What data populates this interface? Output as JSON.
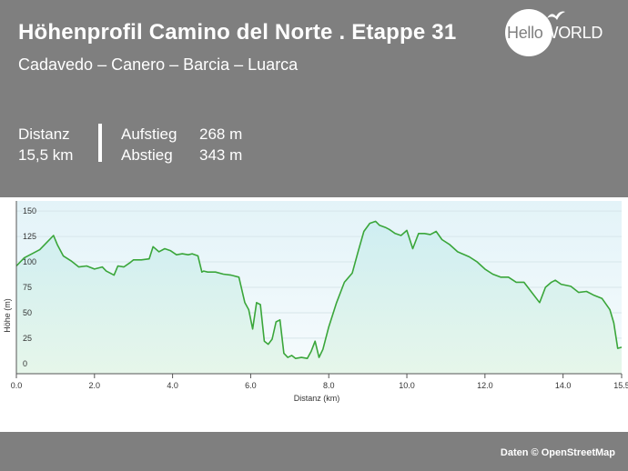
{
  "header": {
    "title": "Höhenprofil Camino del Norte . Etappe 31",
    "subtitle": "Cadavedo – Canero – Barcia – Luarca",
    "logo": {
      "part1": "Hello",
      "part2": "WORLD"
    },
    "stats": {
      "distance_label": "Distanz",
      "distance_value": "15,5 km",
      "ascent_label": "Aufstieg",
      "ascent_value": "268 m",
      "descent_label": "Abstieg",
      "descent_value": "343 m"
    }
  },
  "footer": {
    "credit": "Daten © OpenStreetMap"
  },
  "colors": {
    "header_bg": "#7f7f7f",
    "line": "#3aa63a",
    "fill_top": "#cdeef0",
    "fill_bottom": "#e4f5e8"
  },
  "chart_data": {
    "type": "area",
    "title": "",
    "xlabel": "Distanz  (km)",
    "ylabel": "Höhe (m)",
    "xlim": [
      0,
      15.5
    ],
    "ylim": [
      -10,
      160
    ],
    "x_ticks": [
      "0.0",
      "2.0",
      "4.0",
      "6.0",
      "8.0",
      "10.0",
      "12.0",
      "14.0",
      "15.5"
    ],
    "x_tick_values": [
      0,
      2,
      4,
      6,
      8,
      10,
      12,
      14,
      15.5
    ],
    "y_ticks": [
      "150",
      "125",
      "100",
      "75",
      "50",
      "25",
      "0"
    ],
    "y_tick_values": [
      150,
      125,
      100,
      75,
      50,
      25,
      0
    ],
    "grid": true,
    "series": [
      {
        "x": [
          0,
          0.2,
          0.4,
          0.6,
          0.8,
          0.95,
          1.05,
          1.2,
          1.4,
          1.6,
          1.8,
          2.0,
          2.2,
          2.3,
          2.5,
          2.6,
          2.75,
          2.9,
          3.0,
          3.2,
          3.4,
          3.5,
          3.65,
          3.8,
          3.95,
          4.1,
          4.25,
          4.4,
          4.5,
          4.65,
          4.75,
          4.8,
          4.9,
          5.1,
          5.3,
          5.5,
          5.7,
          5.85,
          5.95,
          6.05,
          6.15,
          6.25,
          6.35,
          6.45,
          6.55,
          6.65,
          6.75,
          6.85,
          6.95,
          7.05,
          7.15,
          7.3,
          7.45,
          7.55,
          7.65,
          7.75,
          7.85,
          8.0,
          8.2,
          8.4,
          8.6,
          8.75,
          8.9,
          9.05,
          9.2,
          9.3,
          9.45,
          9.55,
          9.7,
          9.85,
          10.0,
          10.15,
          10.3,
          10.45,
          10.6,
          10.75,
          10.9,
          11.1,
          11.3,
          11.6,
          11.8,
          12.0,
          12.2,
          12.4,
          12.6,
          12.8,
          13.0,
          13.2,
          13.4,
          13.55,
          13.7,
          13.8,
          13.95,
          14.2,
          14.4,
          14.6,
          14.8,
          15.0,
          15.2,
          15.3,
          15.4,
          15.5
        ],
        "y": [
          96,
          104,
          108,
          112,
          120,
          126,
          117,
          106,
          101,
          95,
          96,
          93,
          95,
          91,
          87,
          96,
          95,
          99,
          102,
          102,
          103,
          115,
          110,
          113,
          111,
          107,
          108,
          107,
          108,
          106,
          90,
          91,
          90,
          90,
          88,
          87,
          85,
          60,
          53,
          34,
          60,
          58,
          22,
          19,
          24,
          41,
          43,
          10,
          6,
          8,
          5,
          6,
          5,
          12,
          22,
          6,
          14,
          36,
          60,
          80,
          89,
          110,
          130,
          138,
          140,
          136,
          134,
          132,
          128,
          126,
          131,
          113,
          128,
          128,
          127,
          130,
          122,
          117,
          110,
          105,
          100,
          93,
          88,
          85,
          85,
          80,
          80,
          70,
          60,
          75,
          80,
          82,
          78,
          76,
          70,
          71,
          67,
          64,
          53,
          40,
          15,
          16
        ]
      }
    ]
  }
}
